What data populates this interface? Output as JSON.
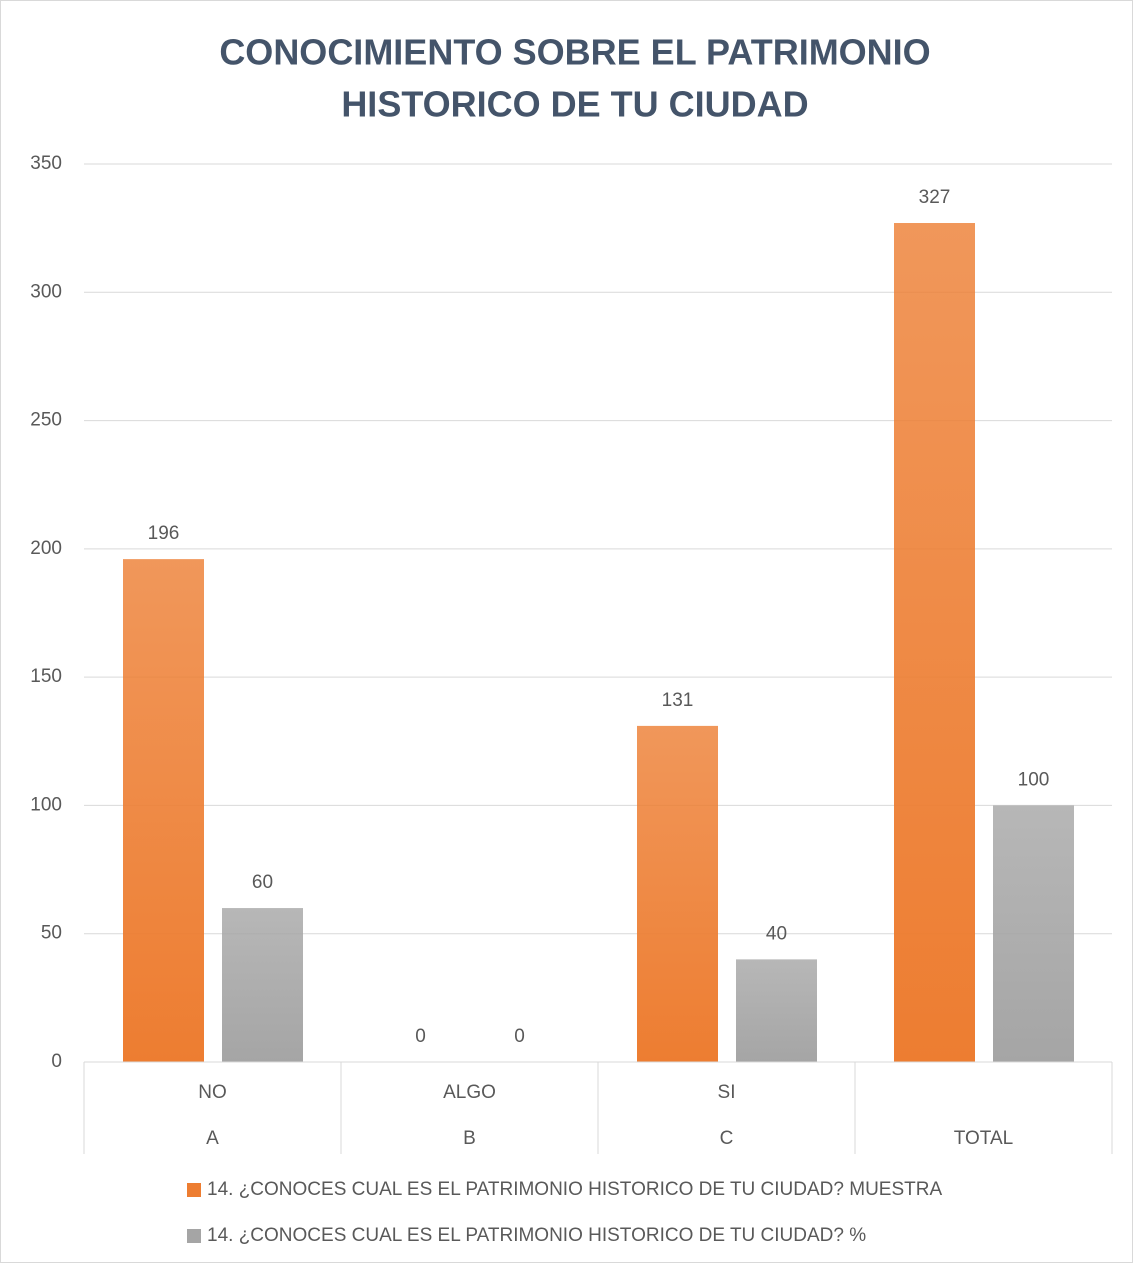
{
  "chart_data": {
    "type": "bar",
    "title": [
      "CONOCIMIENTO SOBRE EL PATRIMONIO",
      "HISTORICO DE TU CIUDAD"
    ],
    "categories": [
      "NO",
      "ALGO",
      "SI",
      null
    ],
    "category_groups": [
      "A",
      "B",
      "C",
      "TOTAL"
    ],
    "series": [
      {
        "name": "14. ¿CONOCES CUAL ES EL PATRIMONIO HISTORICO DE TU CIUDAD? MUESTRA",
        "color": "#ed7d31",
        "values": [
          196,
          0,
          131,
          327
        ]
      },
      {
        "name": "14. ¿CONOCES CUAL ES EL PATRIMONIO HISTORICO DE TU CIUDAD? %",
        "color": "#a5a5a5",
        "values": [
          60,
          0,
          40,
          100
        ]
      }
    ],
    "ylim": [
      0,
      350
    ],
    "yticks": [
      0,
      50,
      100,
      150,
      200,
      250,
      300,
      350
    ],
    "grid": true,
    "legend": "bottom"
  }
}
